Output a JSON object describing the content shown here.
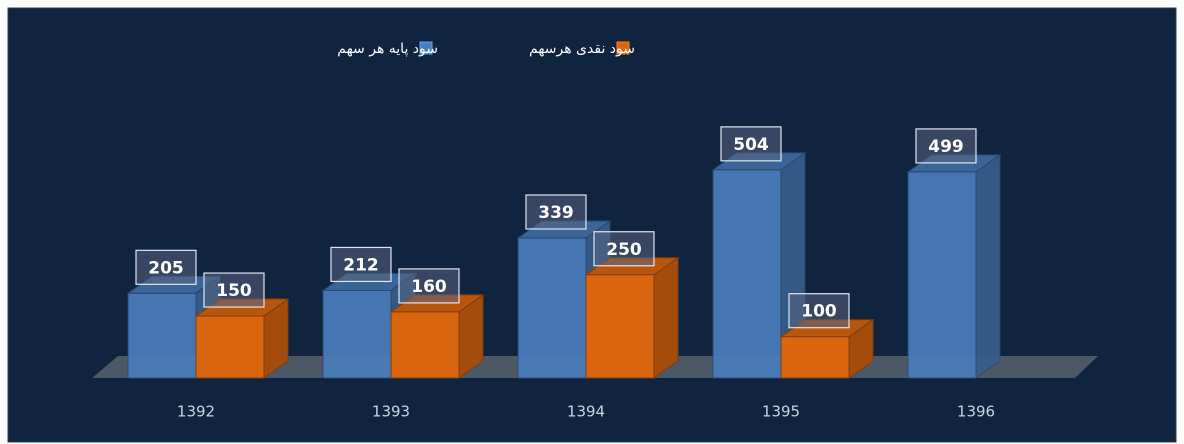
{
  "chart_data": {
    "type": "bar3d",
    "categories": [
      "1392",
      "1393",
      "1394",
      "1395",
      "1396"
    ],
    "series": [
      {
        "name": "سود پایه هر سهم",
        "color": "#4a7dbd",
        "values": [
          205,
          212,
          339,
          504,
          499
        ]
      },
      {
        "name": "سود نقدی هرسهم",
        "color": "#d9650f",
        "values": [
          150,
          160,
          250,
          100,
          null
        ]
      }
    ]
  }
}
